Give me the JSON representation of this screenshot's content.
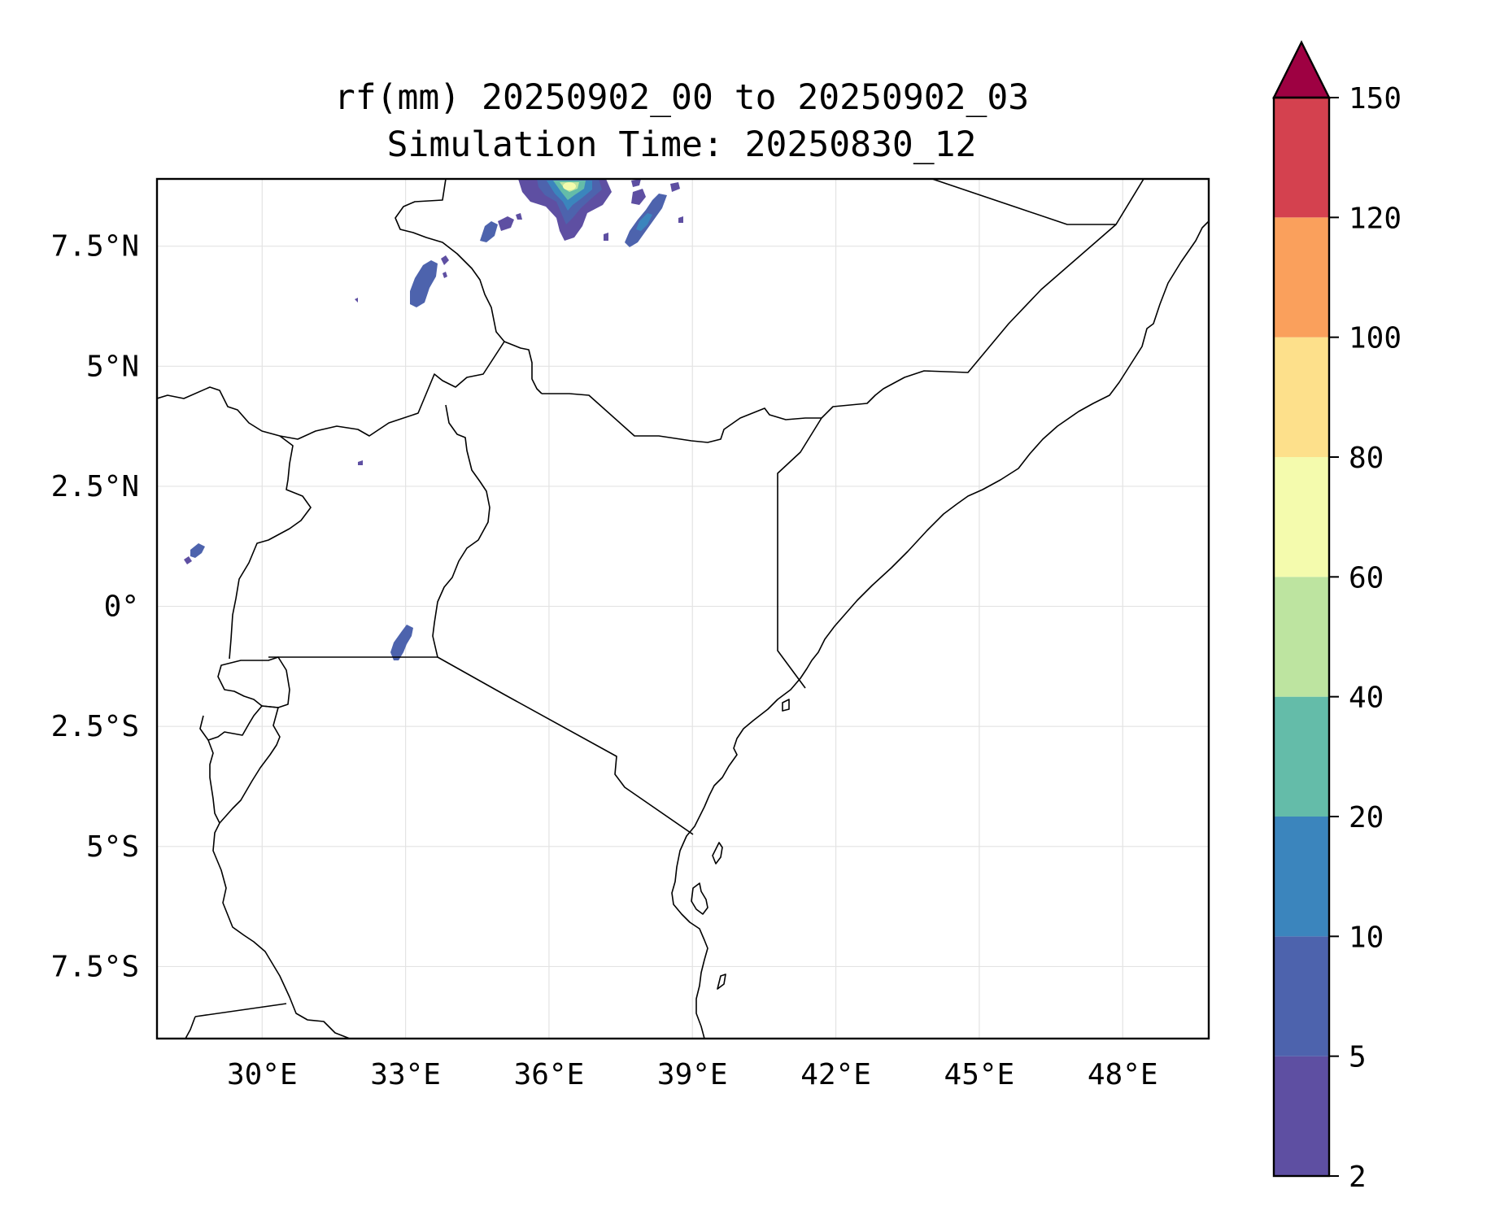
{
  "title": {
    "line1": "rf(mm) 20250902_00 to 20250902_03",
    "line2": "Simulation Time: 20250830_12"
  },
  "map": {
    "lon_range": [
      27.8,
      49.8
    ],
    "lat_range": [
      -9.0,
      8.9
    ],
    "x_ticks": [
      {
        "value": 30,
        "label": "30°E"
      },
      {
        "value": 33,
        "label": "33°E"
      },
      {
        "value": 36,
        "label": "36°E"
      },
      {
        "value": 39,
        "label": "39°E"
      },
      {
        "value": 42,
        "label": "42°E"
      },
      {
        "value": 45,
        "label": "45°E"
      },
      {
        "value": 48,
        "label": "48°E"
      }
    ],
    "y_ticks": [
      {
        "value": 7.5,
        "label": "7.5°N"
      },
      {
        "value": 5,
        "label": "5°N"
      },
      {
        "value": 2.5,
        "label": "2.5°N"
      },
      {
        "value": 0,
        "label": "0°"
      },
      {
        "value": -2.5,
        "label": "2.5°S"
      },
      {
        "value": -5,
        "label": "5°S"
      },
      {
        "value": -7.5,
        "label": "7.5°S"
      }
    ],
    "gridlines": true
  },
  "colorbar": {
    "levels": [
      "2",
      "5",
      "10",
      "20",
      "40",
      "60",
      "80",
      "100",
      "120",
      "150"
    ],
    "colors": [
      "#5e4fa2",
      "#4d63ad",
      "#3b85bd",
      "#64bca9",
      "#bde4a0",
      "#f4fbad",
      "#fde08b",
      "#faa05c",
      "#d4414f"
    ],
    "extend_color": "#9e0142",
    "extend": "max"
  },
  "chart_data": {
    "type": "heatmap",
    "variable": "rf(mm)",
    "levels": [
      2,
      5,
      10,
      20,
      40,
      60,
      80,
      100,
      120,
      150
    ],
    "x_range": [
      27.8,
      49.8
    ],
    "y_range": [
      -9.0,
      8.9
    ],
    "grid": true,
    "rain_cells": [
      {
        "lon": 36.7,
        "lat": 8.6,
        "max_mm": 60
      },
      {
        "lon": 38.1,
        "lat": 7.9,
        "max_mm": 20
      },
      {
        "lon": 35.3,
        "lat": 7.9,
        "max_mm": 10
      },
      {
        "lon": 33.6,
        "lat": 6.7,
        "max_mm": 10
      },
      {
        "lon": 33.1,
        "lat": -0.7,
        "max_mm": 10
      },
      {
        "lon": 28.7,
        "lat": 1.2,
        "max_mm": 5
      }
    ]
  }
}
